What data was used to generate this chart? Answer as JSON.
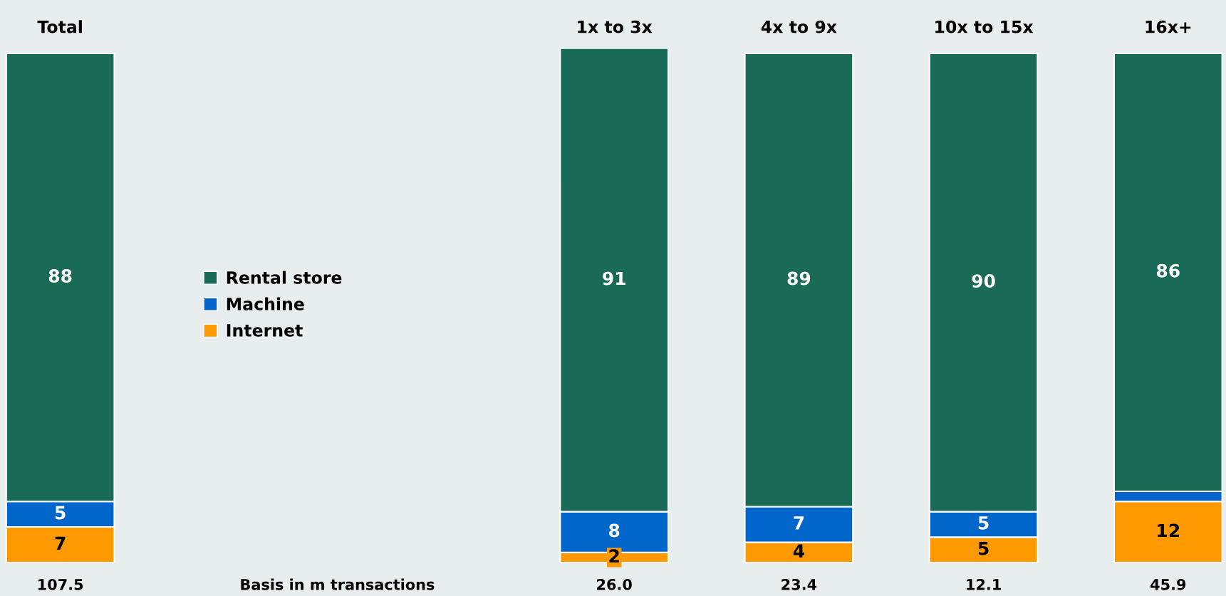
{
  "chart_data": {
    "type": "bar",
    "stacked": true,
    "categories": [
      "Total",
      null,
      null,
      "1x to 3x",
      "4x to 9x",
      "10x to 15x",
      "16x+"
    ],
    "series": [
      {
        "name": "Internet",
        "color": "#ff9900",
        "values": [
          7,
          null,
          null,
          2,
          4,
          5,
          12
        ],
        "value_labels": [
          "7",
          null,
          null,
          "2",
          "4",
          "5",
          "12"
        ]
      },
      {
        "name": "Machine",
        "color": "#0066cc",
        "values": [
          5,
          null,
          null,
          8,
          7,
          5,
          2
        ],
        "value_labels": [
          "5",
          null,
          null,
          "8",
          "7",
          "5",
          null
        ]
      },
      {
        "name": "Rental store",
        "color": "#1a6b55",
        "values": [
          88,
          null,
          null,
          91,
          89,
          90,
          86
        ],
        "value_labels": [
          "88",
          null,
          null,
          "91",
          "89",
          "90",
          "86"
        ]
      }
    ],
    "ylim": [
      0,
      101
    ],
    "tick_labels": "x",
    "grid": false,
    "legend": "left",
    "annotations": [
      "107.5",
      "Basis in m transactions",
      "26.0",
      "23.4",
      "12.1",
      "45.9"
    ]
  }
}
